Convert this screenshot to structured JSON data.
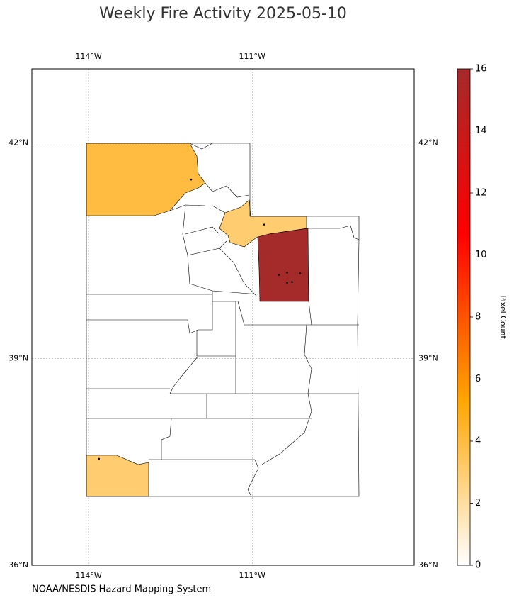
{
  "chart_data": {
    "type": "choropleth",
    "title": "Weekly Fire Activity 2025-05-10",
    "source": "NOAA/NESDIS Hazard Mapping System",
    "xlim": [
      -115.04,
      -108.03
    ],
    "ylim": [
      36,
      43
    ],
    "xticks": [
      {
        "value": -114,
        "label": "114°W"
      },
      {
        "value": -111,
        "label": "111°W"
      }
    ],
    "yticks": [
      {
        "value": 36,
        "label": "36°N"
      },
      {
        "value": 39,
        "label": "39°N"
      },
      {
        "value": 42,
        "label": "42°N"
      }
    ],
    "grid": true,
    "regions": {
      "values": [
        4,
        3,
        16,
        3
      ]
    },
    "points": {
      "color": "#000000",
      "x": [
        -112.12,
        -110.78,
        -110.51,
        -110.36,
        -110.12,
        -110.36,
        -110.27,
        -113.81
      ],
      "y": [
        41.5,
        40.88,
        40.18,
        40.21,
        40.2,
        40.07,
        40.08,
        37.56
      ]
    },
    "colorbar": {
      "label": "Pixel Count",
      "clim": [
        0,
        16
      ],
      "ticks": [
        0,
        2,
        4,
        6,
        8,
        10,
        12,
        14,
        16
      ],
      "colors": [
        "#ffffff",
        "#ffa500",
        "#ff0000",
        "#a52a2a"
      ]
    }
  }
}
